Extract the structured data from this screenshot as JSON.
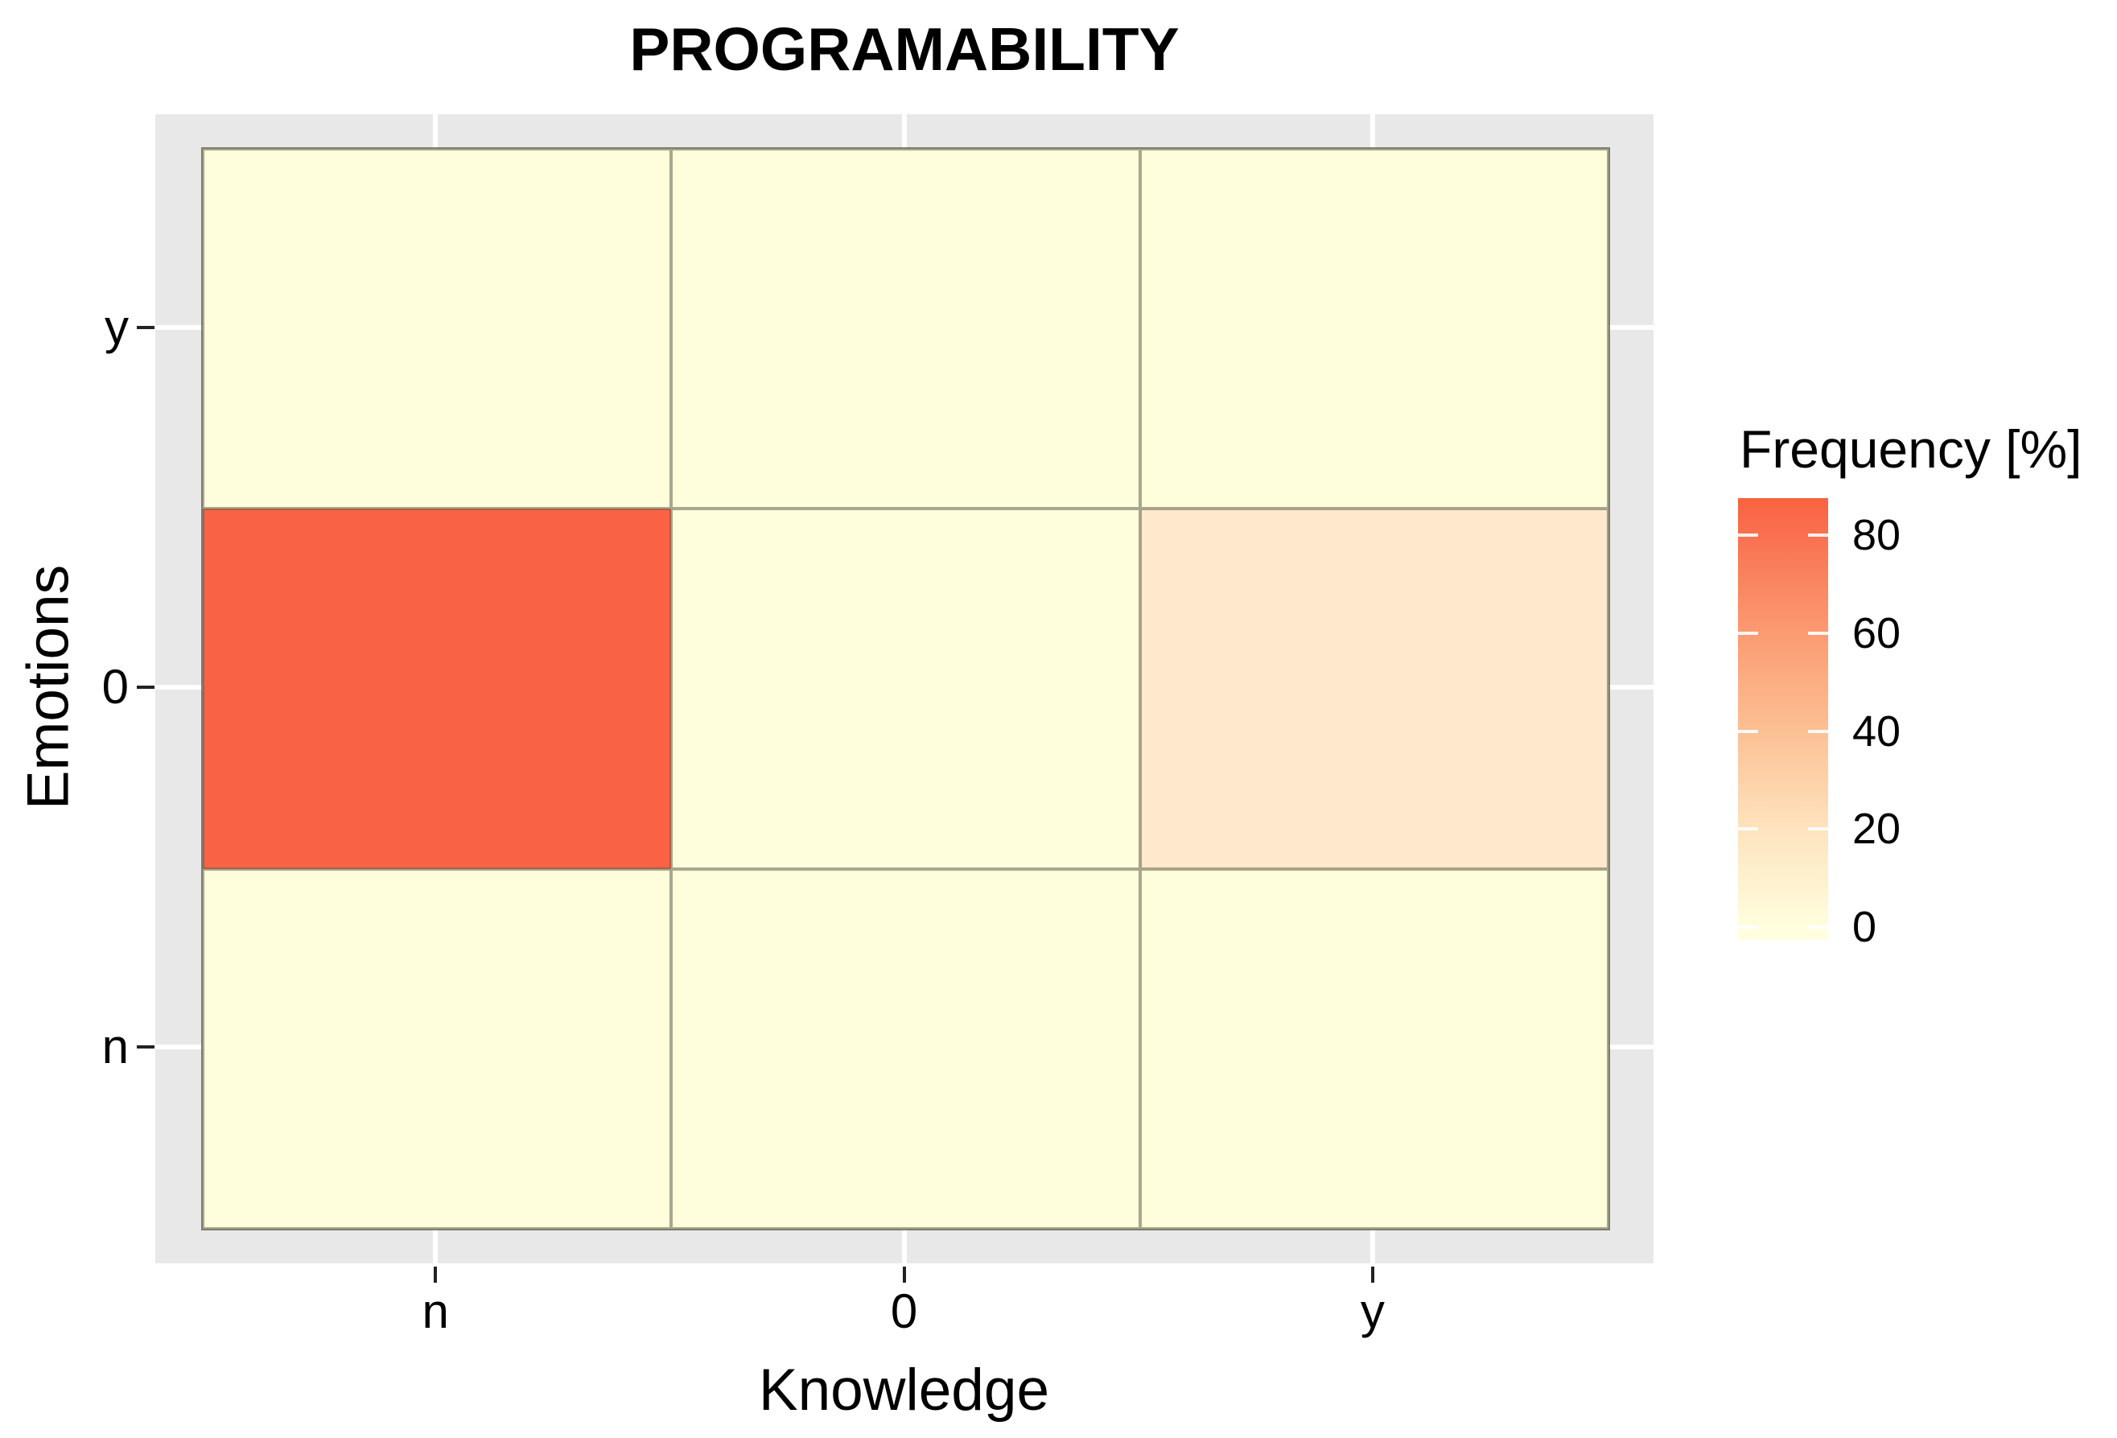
{
  "chart_data": {
    "type": "heatmap",
    "title": "PROGRAMABILITY",
    "xlabel": "Knowledge",
    "ylabel": "Emotions",
    "x_categories": [
      "n",
      "0",
      "y"
    ],
    "y_categories_top_to_bottom": [
      "y",
      "0",
      "n"
    ],
    "values_unit": "percent",
    "values_rows_top_to_bottom": [
      [
        0,
        0,
        0
      ],
      [
        87,
        0,
        12
      ],
      [
        0,
        0,
        0
      ]
    ],
    "cell_colors_rows_top_to_bottom": [
      [
        "#FEFEDC",
        "#FEFEDC",
        "#FEFEDC"
      ],
      [
        "#FA6244",
        "#FEFEDC",
        "#FEE9CC"
      ],
      [
        "#FEFEDC",
        "#FEFEDC",
        "#FEFEDC"
      ]
    ],
    "legend": {
      "title": "Frequency [%]",
      "position": "right",
      "ticks": [
        80,
        60,
        40,
        20,
        0
      ],
      "bar_range_top": 87.6,
      "bar_range_bottom": -2.6,
      "gradient": [
        {
          "value": 87.6,
          "color": "#F96340"
        },
        {
          "value": 80,
          "color": "#FA7050"
        },
        {
          "value": 60,
          "color": "#FB9B72"
        },
        {
          "value": 40,
          "color": "#FCC094"
        },
        {
          "value": 20,
          "color": "#FEE3BE"
        },
        {
          "value": 0,
          "color": "#FFFEDD"
        },
        {
          "value": -2.6,
          "color": "#FFFFE0"
        }
      ]
    },
    "layout_hints": {
      "grid": true,
      "panel_background": "#E8E8E8",
      "grid_color": "#FFFFFF",
      "tile_border_color": "#60604E",
      "background": "#FFFFFF",
      "text_color": "#000000"
    }
  }
}
